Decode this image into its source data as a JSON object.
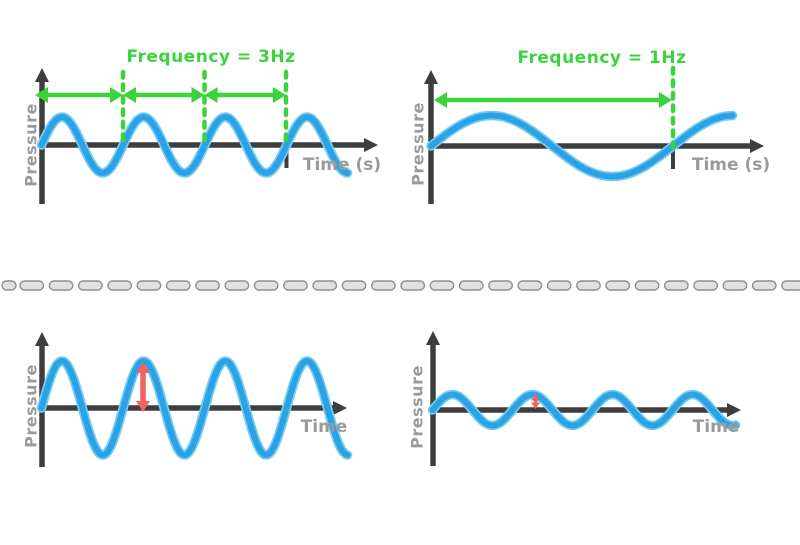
{
  "figure": {
    "description": "Sound wave diagram comparing frequency (top) and amplitude (bottom)"
  },
  "colors": {
    "background": "#FFFFFF",
    "wave": "#2AA2E5",
    "wave_halo": "#74CCF2",
    "axis": "#3E3E3E",
    "label": "#9A9A9A",
    "green": "#3BD33B",
    "red": "#F4625D",
    "divider_fill": "#E0E0E0",
    "divider_stroke": "#8E8E8E"
  },
  "panels": [
    {
      "id": "top-left",
      "annotation": "Frequency = 3Hz",
      "frequency_hz": 3,
      "xlabel": "Time (s)",
      "ylabel": "Pressure",
      "cycles_shown": 3.75,
      "periods_marked": 3,
      "amplitude": "medium"
    },
    {
      "id": "top-right",
      "annotation": "Frequency = 1Hz",
      "frequency_hz": 1,
      "xlabel": "Time (s)",
      "ylabel": "Pressure",
      "cycles_shown": 1.25,
      "periods_marked": 1,
      "amplitude": "medium"
    },
    {
      "id": "bottom-left",
      "annotation": "",
      "xlabel": "Time",
      "ylabel": "Pressure",
      "cycles_shown": 3.75,
      "amplitude": "large",
      "amplitude_marker": true
    },
    {
      "id": "bottom-right",
      "annotation": "",
      "xlabel": "Time",
      "ylabel": "Pressure",
      "cycles_shown": 3.8,
      "amplitude": "small",
      "amplitude_marker": true
    }
  ],
  "chart_data": [
    {
      "type": "line",
      "title": "Frequency = 3Hz",
      "xlabel": "Time (s)",
      "ylabel": "Pressure",
      "series": [
        {
          "name": "high-frequency wave",
          "waveform": "sine",
          "frequency_hz": 3,
          "cycles_shown": 3.75,
          "relative_amplitude": 0.6
        }
      ],
      "annotations": [
        "three period spans marked with green double arrows and dashed lines"
      ]
    },
    {
      "type": "line",
      "title": "Frequency = 1Hz",
      "xlabel": "Time (s)",
      "ylabel": "Pressure",
      "series": [
        {
          "name": "low-frequency wave",
          "waveform": "sine",
          "frequency_hz": 1,
          "cycles_shown": 1.25,
          "relative_amplitude": 0.65
        }
      ],
      "annotations": [
        "one period span marked with green double arrow and dashed line"
      ]
    },
    {
      "type": "line",
      "title": "",
      "xlabel": "Time",
      "ylabel": "Pressure",
      "series": [
        {
          "name": "loud wave",
          "waveform": "sine",
          "cycles_shown": 3.75,
          "relative_amplitude": 1.0
        }
      ],
      "annotations": [
        "red vertical double arrow marks large amplitude at second crest"
      ]
    },
    {
      "type": "line",
      "title": "",
      "xlabel": "Time",
      "ylabel": "Pressure",
      "series": [
        {
          "name": "quiet wave",
          "waveform": "sine",
          "cycles_shown": 3.8,
          "relative_amplitude": 0.3
        }
      ],
      "annotations": [
        "small red vertical double arrow marks small amplitude at second crest"
      ]
    }
  ]
}
